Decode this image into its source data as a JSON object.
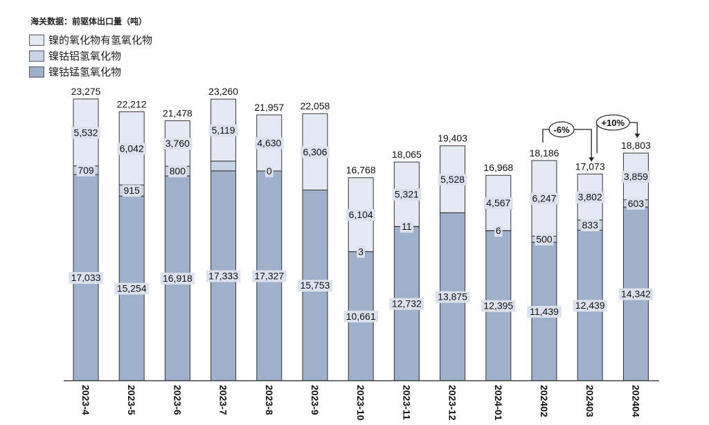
{
  "chart_data": {
    "type": "bar",
    "stacked": true,
    "title": "海关数据：前驱体出口量（吨）",
    "categories": [
      "2023-4",
      "2023-5",
      "2023-6",
      "2023-7",
      "2023-8",
      "2023-9",
      "2023-10",
      "2023-11",
      "2023-12",
      "2024-01",
      "202402",
      "202403",
      "202404"
    ],
    "series": [
      {
        "name": "镍钴锰氢氧化物",
        "color": "#9fb0cc",
        "values": [
          17033,
          15254,
          16918,
          17333,
          17327,
          15753,
          10661,
          12732,
          13875,
          12395,
          11439,
          12439,
          14342
        ],
        "labels": [
          "17,033",
          "15,254",
          "16,918",
          "17,333",
          "17,327",
          "15,753",
          "10,661",
          "12,732",
          "13,875",
          "12,395",
          "11,439",
          "12,439",
          "14,342"
        ]
      },
      {
        "name": "镍钴铝氢氧化物",
        "color": "#c9d3e6",
        "values": [
          709,
          915,
          800,
          808,
          0,
          0,
          3,
          11,
          0,
          6,
          500,
          833,
          603
        ],
        "labels": [
          "709",
          "915",
          "800",
          "",
          "0",
          "",
          "3",
          "11",
          "",
          "6",
          "500",
          "833",
          "603"
        ]
      },
      {
        "name": "镍的氧化物有氢氧化物",
        "color": "#e4e9f3",
        "values": [
          5532,
          6042,
          3760,
          5119,
          4630,
          6306,
          6104,
          5321,
          5528,
          4567,
          6247,
          3802,
          3859
        ],
        "labels": [
          "5,532",
          "6,042",
          "3,760",
          "5,119",
          "4,630",
          "6,306",
          "6,104",
          "5,321",
          "5,528",
          "4,567",
          "6,247",
          "3,802",
          "3,859"
        ]
      }
    ],
    "totals": [
      "23,275",
      "22,212",
      "21,478",
      "23,260",
      "21,957",
      "22,058",
      "16,768",
      "18,065",
      "19,403",
      "16,968",
      "18,186",
      "17,073",
      "18,803"
    ],
    "total_values": [
      23275,
      22212,
      21478,
      23260,
      21957,
      22058,
      16768,
      18065,
      19403,
      16968,
      18186,
      17073,
      18803
    ],
    "ylim": [
      0,
      23500
    ],
    "grid": false,
    "legend_position": "top-left",
    "annotations": [
      {
        "text": "-6%",
        "from": "202402",
        "to": "202403"
      },
      {
        "text": "+10%",
        "from": "202403",
        "to": "202404"
      }
    ]
  }
}
